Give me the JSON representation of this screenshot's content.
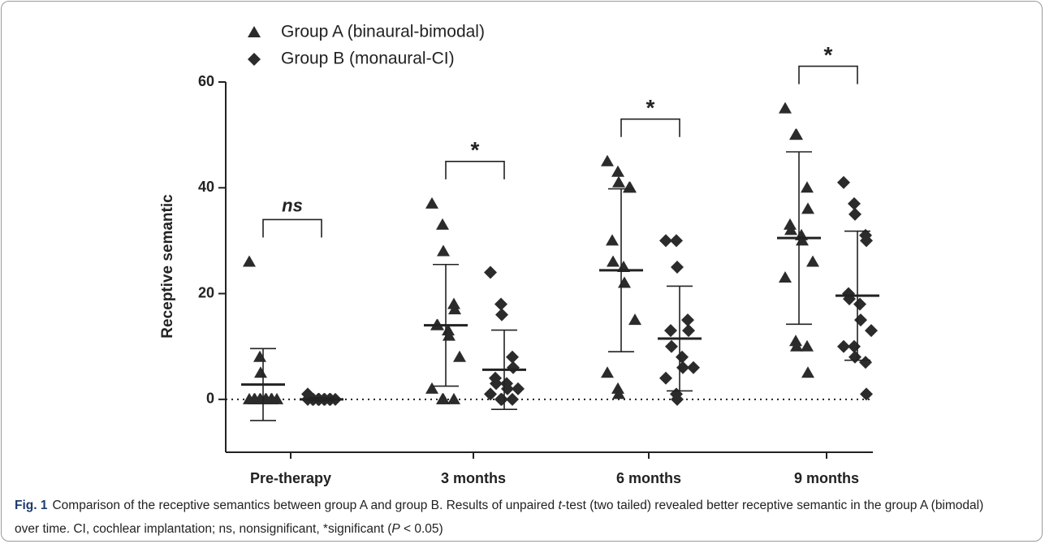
{
  "chart_data": {
    "type": "scatter",
    "y_label": "Receptive semantic",
    "categories": [
      "Pre-therapy",
      "3 months",
      "6 months",
      "9 months"
    ],
    "ylim": [
      -10,
      60
    ],
    "yticks": [
      0,
      20,
      40,
      60
    ],
    "reference_line": 0,
    "series": [
      {
        "name": "Group A (binaural-bimodal)",
        "marker": "triangle",
        "color": "#2b2b2b",
        "values": [
          [
            26,
            8,
            5,
            0,
            0,
            0,
            0,
            0,
            0,
            0,
            0,
            0,
            0,
            0
          ],
          [
            37,
            33,
            28,
            18,
            17,
            14,
            14,
            13,
            12,
            8,
            2,
            0,
            0,
            0
          ],
          [
            45,
            43,
            41,
            40,
            40,
            30,
            26,
            25,
            22,
            15,
            5,
            2,
            1
          ],
          [
            55,
            50,
            50,
            40,
            36,
            33,
            32,
            31,
            30,
            26,
            23,
            11,
            10,
            10,
            5
          ]
        ],
        "mean": [
          2.8,
          14,
          24.4,
          30.5
        ],
        "sd": [
          6.8,
          11.5,
          15.4,
          16.3
        ]
      },
      {
        "name": "Group B (monaural-CI)",
        "marker": "diamond",
        "color": "#2b2b2b",
        "values": [
          [
            1,
            0,
            0,
            0,
            0,
            0,
            0,
            0,
            0,
            0,
            0,
            0,
            0,
            0
          ],
          [
            24,
            18,
            16,
            8,
            6,
            4,
            3,
            3,
            2,
            2,
            1,
            0,
            0,
            0
          ],
          [
            30,
            30,
            25,
            15,
            13,
            13,
            10,
            8,
            6,
            6,
            4,
            1,
            0
          ],
          [
            41,
            37,
            35,
            31,
            30,
            20,
            19,
            18,
            15,
            13,
            10,
            10,
            8,
            7,
            1
          ]
        ],
        "mean": [
          0,
          5.6,
          11.5,
          19.6
        ],
        "sd": [
          0.3,
          7.5,
          9.9,
          12.2
        ]
      }
    ],
    "annotations": [
      {
        "label": "ns",
        "italic": true
      },
      {
        "label": "*",
        "italic": false
      },
      {
        "label": "*",
        "italic": false
      },
      {
        "label": "*",
        "italic": false
      }
    ]
  },
  "caption": {
    "label": "Fig. 1",
    "segments": [
      {
        "text": "Comparison of the receptive semantics between group A and group B. Results of unpaired ",
        "italic": false
      },
      {
        "text": "t",
        "italic": true
      },
      {
        "text": "-test (two tailed) revealed better receptive semantic in the group A (bimodal) over time. CI, cochlear implantation; ns, nonsignificant, *significant (",
        "italic": false
      },
      {
        "text": "P",
        "italic": true
      },
      {
        "text": " < 0.05)",
        "italic": false
      }
    ]
  }
}
